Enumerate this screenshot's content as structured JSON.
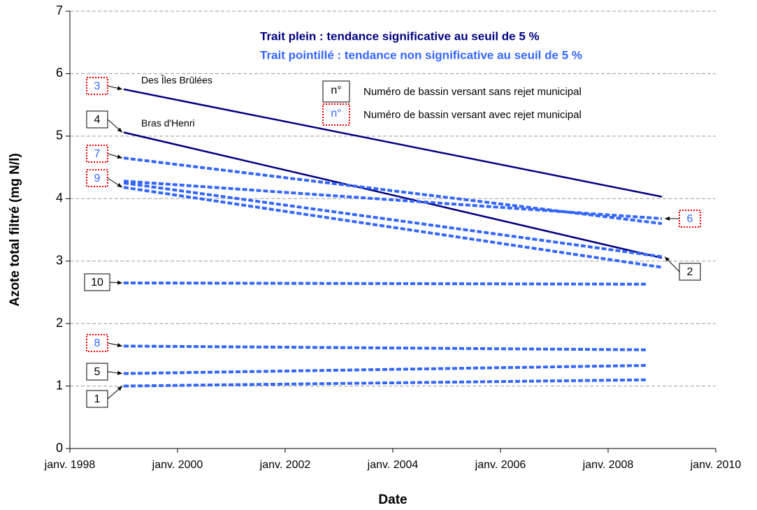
{
  "chart_data": {
    "type": "line",
    "y_label": "Azote total filtré (mg N/l)",
    "x_label": "Date",
    "legend_title_solid": "Trait plein :  tendance significative au seuil de 5 %",
    "legend_title_dashed": "Trait pointillé :  tendance non significative au seuil de 5 %",
    "legend_box_text": "n°",
    "legend_plain": "Numéro de bassin versant sans rejet municipal",
    "legend_municipal": "Numéro de bassin versant avec rejet municipal",
    "xlim": [
      1998,
      2010
    ],
    "xticks": [
      {
        "value": 1998,
        "label": "janv. 1998"
      },
      {
        "value": 2000,
        "label": "janv. 2000"
      },
      {
        "value": 2002,
        "label": "janv. 2002"
      },
      {
        "value": 2004,
        "label": "janv. 2004"
      },
      {
        "value": 2006,
        "label": "janv. 2006"
      },
      {
        "value": 2008,
        "label": "janv. 2008"
      },
      {
        "value": 2010,
        "label": "janv. 2010"
      }
    ],
    "ylim": [
      0,
      7
    ],
    "yticks": [
      0,
      1,
      2,
      3,
      4,
      5,
      6,
      7
    ],
    "grid": true,
    "series": [
      {
        "name": "3",
        "annotation": "Des Îles Brûlées",
        "color": "#000080",
        "dashed": false,
        "municipal": true,
        "x": [
          1999,
          2009
        ],
        "values": [
          5.75,
          4.03
        ]
      },
      {
        "name": "4",
        "annotation": "Bras d'Henri",
        "color": "#000080",
        "dashed": false,
        "municipal": false,
        "x": [
          1999,
          2009
        ],
        "values": [
          5.06,
          3.05
        ]
      },
      {
        "name": "7",
        "color": "#3366ff",
        "dashed": true,
        "municipal": true,
        "x": [
          1999,
          2009
        ],
        "values": [
          4.65,
          3.6
        ]
      },
      {
        "name": "9",
        "color": "#3366ff",
        "dashed": true,
        "municipal": true,
        "x": [
          1999,
          2009
        ],
        "values": [
          4.18,
          2.9
        ]
      },
      {
        "name": "6",
        "color": "#3366ff",
        "dashed": true,
        "municipal": true,
        "x": [
          1999,
          2009
        ],
        "values": [
          4.28,
          3.68
        ]
      },
      {
        "name": "2",
        "color": "#3366ff",
        "dashed": true,
        "municipal": false,
        "x": [
          1999,
          2009
        ],
        "values": [
          4.25,
          3.07
        ]
      },
      {
        "name": "10",
        "color": "#3366ff",
        "dashed": true,
        "municipal": false,
        "x": [
          1999,
          2008.7
        ],
        "values": [
          2.65,
          2.63
        ]
      },
      {
        "name": "8",
        "color": "#3366ff",
        "dashed": true,
        "municipal": true,
        "x": [
          1999,
          2008.7
        ],
        "values": [
          1.64,
          1.58
        ]
      },
      {
        "name": "5",
        "color": "#3366ff",
        "dashed": true,
        "municipal": false,
        "x": [
          1999,
          2008.7
        ],
        "values": [
          1.2,
          1.33
        ]
      },
      {
        "name": "1",
        "color": "#3366ff",
        "dashed": true,
        "municipal": false,
        "x": [
          1999,
          2008.7
        ],
        "values": [
          1.0,
          1.1
        ]
      }
    ]
  }
}
